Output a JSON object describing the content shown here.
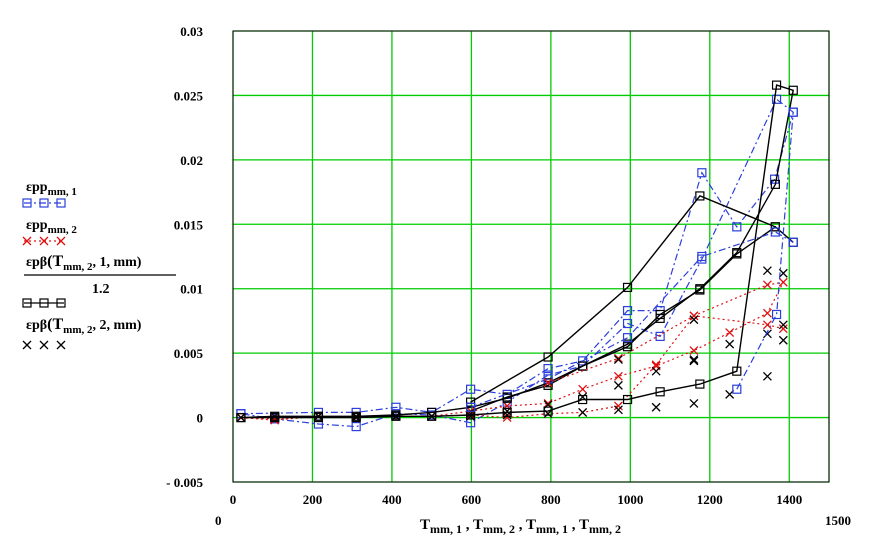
{
  "chart_data": {
    "type": "line",
    "xlim": [
      0,
      1500
    ],
    "ylim": [
      -0.005,
      0.03
    ],
    "x_axis_ends": {
      "min": "0",
      "max": "1500"
    },
    "x_ticks": [
      0,
      200,
      400,
      600,
      800,
      1000,
      1200,
      1400
    ],
    "y_ticks": [
      -0.005,
      0,
      0.005,
      0.01,
      0.015,
      0.02,
      0.025,
      0.03
    ],
    "y_tick_labels": [
      "- 0.005",
      "0",
      "0.005",
      "0.01",
      "0.015",
      "0.02",
      "0.025",
      "0.03"
    ],
    "grid": true,
    "grid_color": "#00cc00",
    "xlabel": {
      "main": "T",
      "sub1": "mm, 1",
      "sep1": " , T",
      "sub2": "mm, 2",
      "sep2": " , T",
      "sub3": "mm, 1",
      "sep3": " , T",
      "sub4": "mm, 2"
    },
    "legend_placement": "left",
    "legend": [
      {
        "label": "εpp",
        "sub": "mm, 1",
        "color": "#2a3fdc",
        "marker": "square",
        "dash": "dashdot"
      },
      {
        "label": "εpp",
        "sub": "mm, 2",
        "color": "#e01010",
        "marker": "x",
        "dash": "dotted"
      },
      {
        "label": "εpβ",
        "arg_open": "(T",
        "arg_sub": "mm, 2",
        "arg_rest": ", 1, mm)",
        "denominator": "1.2",
        "color": "#000000",
        "marker": "square",
        "dash": "solid"
      },
      {
        "label": "εpβ",
        "arg_open": "(T",
        "arg_sub": "mm, 2",
        "arg_rest": ", 2, mm)",
        "color": "#000000",
        "marker": "x",
        "dash": "none"
      }
    ],
    "series": [
      {
        "color": "#2a3fdc",
        "marker": "square",
        "dash": "dashdot",
        "x": [
          20,
          215,
          310,
          410,
          500,
          598,
          690,
          793,
          880,
          993,
          1075,
          1180,
          1268,
          1363,
          1410,
          1368,
          1180,
          1075,
          993,
          880,
          793,
          690,
          598,
          500,
          410,
          310,
          215,
          105,
          20
        ],
        "y": [
          0.0003,
          0.0004,
          0.0004,
          0.0008,
          0.0004,
          0.0022,
          0.0018,
          0.0038,
          0.0044,
          0.0083,
          0.0083,
          0.019,
          0.0148,
          0.0185,
          0.0237,
          0.0247,
          0.0123,
          0.0063,
          0.0073,
          0.004,
          0.0033,
          0.0012,
          -0.0004,
          0.0002,
          0.0003,
          -0.0007,
          -0.0005,
          -0.0001,
          0.0003
        ]
      },
      {
        "color": "#e01010",
        "marker": "x",
        "dash": "dotted",
        "x": [
          20,
          105,
          215,
          310,
          410,
          500,
          598,
          690,
          793,
          880,
          970,
          1065,
          1160,
          1250,
          1345,
          1385,
          1345,
          1160,
          1065,
          970,
          880,
          793,
          690,
          598,
          500,
          410,
          310,
          215,
          105,
          20
        ],
        "y": [
          0.0,
          -0.0002,
          0.0001,
          0.0,
          0.0001,
          0.0001,
          0.0005,
          0.0009,
          0.0011,
          0.0022,
          0.0032,
          0.004,
          0.0052,
          0.0066,
          0.0081,
          0.0105,
          0.0103,
          0.0079,
          0.0041,
          0.0009,
          0.0004,
          0.0003,
          0.0,
          0.0002,
          0.0001,
          0.0001,
          0.0,
          0.0001,
          -0.0001,
          0.0
        ]
      },
      {
        "color": "#000000",
        "marker": "square",
        "dash": "solid",
        "x": [
          20,
          105,
          215,
          310,
          410,
          500,
          598,
          690,
          793,
          880,
          993,
          1075,
          1175,
          1268,
          1365,
          1410,
          1368,
          1268,
          1175,
          1075,
          993,
          880,
          793,
          690,
          598,
          500,
          410,
          310,
          215,
          105,
          20
        ],
        "y": [
          0.0,
          0.0001,
          0.0001,
          0.0001,
          0.0002,
          0.0004,
          0.0008,
          0.0015,
          0.0027,
          0.004,
          0.0057,
          0.0077,
          0.01,
          0.0128,
          0.0181,
          0.0254,
          0.0258,
          0.0036,
          0.0026,
          0.002,
          0.0014,
          0.0014,
          0.0005,
          0.0004,
          0.0002,
          0.0001,
          0.0001,
          0.0,
          0.0,
          0.0,
          0.0
        ]
      },
      {
        "color": "#000000",
        "marker": "x",
        "dash": "none",
        "x": [
          20,
          105,
          215,
          310,
          410,
          500,
          598,
          690,
          793,
          880,
          970,
          1065,
          1160,
          1250,
          1345,
          1385,
          1345,
          1250,
          1160,
          1065,
          970,
          880,
          793,
          690,
          598,
          500,
          410,
          310
        ],
        "y": [
          0.0,
          0.0001,
          0.0001,
          0.0001,
          0.0001,
          0.0001,
          0.0003,
          0.0005,
          0.001,
          0.0016,
          0.0025,
          0.0036,
          0.0044,
          0.0057,
          0.0065,
          0.0112,
          0.0114,
          0.0018,
          0.0011,
          0.0008,
          0.0006,
          0.0004,
          0.0003,
          0.0002,
          0.0001,
          0.0001,
          0.0001,
          0.0
        ]
      },
      {
        "color": "#000000",
        "marker": "square",
        "dash": "solid",
        "x": [
          598,
          690,
          793,
          880,
          993,
          1075,
          1175,
          1268,
          1365,
          1410
        ],
        "y": [
          0.0005,
          0.0016,
          0.0025,
          0.004,
          0.0055,
          0.008,
          0.0099,
          0.0127,
          0.0148,
          0.0136
        ]
      },
      {
        "color": "#000000",
        "marker": "square",
        "dash": "solid",
        "x": [
          598,
          793,
          993,
          1175,
          1365
        ],
        "y": [
          0.0012,
          0.0047,
          0.0101,
          0.0172,
          0.0148
        ]
      },
      {
        "color": "#2a3fdc",
        "marker": "square",
        "dash": "dashdot",
        "x": [
          598,
          793,
          993,
          1180,
          1365,
          1410
        ],
        "y": [
          0.0008,
          0.003,
          0.0062,
          0.0125,
          0.0144,
          0.0136
        ]
      },
      {
        "color": "#2a3fdc",
        "marker": "square",
        "dash": "dashdot",
        "x": [
          1268,
          1368,
          1410
        ],
        "y": [
          0.0022,
          0.008,
          0.0237
        ]
      },
      {
        "color": "#e01010",
        "marker": "x",
        "dash": "dotted",
        "x": [
          793,
          970,
          1160,
          1345,
          1385
        ],
        "y": [
          0.0027,
          0.0046,
          0.0079,
          0.0072,
          0.0069
        ]
      },
      {
        "color": "#000000",
        "marker": "x",
        "dash": "none",
        "x": [
          970,
          1160,
          1345,
          1385,
          1385,
          1160
        ],
        "y": [
          0.0045,
          0.0076,
          0.0032,
          0.0072,
          0.006,
          0.0045
        ]
      }
    ]
  }
}
